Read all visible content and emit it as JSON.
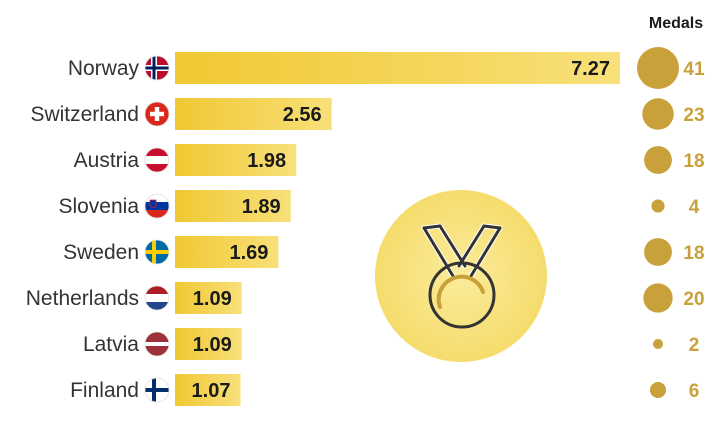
{
  "chart_data": {
    "type": "bar",
    "orientation": "horizontal",
    "categories": [
      "Norway",
      "Switzerland",
      "Austria",
      "Slovenia",
      "Sweden",
      "Netherlands",
      "Latvia",
      "Finland"
    ],
    "values": [
      7.27,
      2.56,
      1.98,
      1.89,
      1.69,
      1.09,
      1.09,
      1.07
    ],
    "value_labels": [
      "7.27",
      "2.56",
      "1.98",
      "1.89",
      "1.69",
      "1.09",
      "1.09",
      "1.07"
    ],
    "medals_header": "Medals",
    "medals": [
      41,
      23,
      18,
      4,
      18,
      20,
      2,
      6
    ],
    "medal_labels": [
      "41",
      "23",
      "18",
      "4",
      "18",
      "20",
      "2",
      "6"
    ],
    "flags": [
      "norway-flag-icon",
      "switzerland-flag-icon",
      "austria-flag-icon",
      "slovenia-flag-icon",
      "sweden-flag-icon",
      "netherlands-flag-icon",
      "latvia-flag-icon",
      "finland-flag-icon"
    ],
    "decoration_icon": "medal-icon",
    "colors": {
      "bar": "#f5d03b",
      "bar_light": "#f8e07a",
      "medal_circle": "#c9a13a",
      "medal_label": "#c9a13a",
      "badge_circle": "#f7e27e"
    }
  }
}
